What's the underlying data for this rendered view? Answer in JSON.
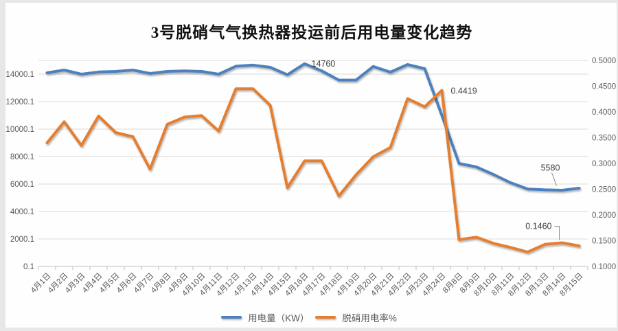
{
  "chart_data": {
    "type": "line",
    "title": "3号脱硝气气换热器投运前后用电量变化趋势",
    "categories": [
      "4月1日",
      "4月2日",
      "4月3日",
      "4月4日",
      "4月5日",
      "4月6日",
      "4月7日",
      "4月8日",
      "4月9日",
      "4月10日",
      "4月11日",
      "4月12日",
      "4月13日",
      "4月14日",
      "4月15日",
      "4月16日",
      "4月17日",
      "4月18日",
      "4月19日",
      "4月20日",
      "4月21日",
      "4月22日",
      "4月23日",
      "4月24日",
      "8月8日",
      "8月9日",
      "8月10日",
      "8月11日",
      "8月12日",
      "8月13日",
      "8月14日",
      "8月15日"
    ],
    "series": [
      {
        "name": "用电量（KW）",
        "yaxis": "left",
        "color": "#4E81BD",
        "values": [
          14100,
          14300,
          14000,
          14160,
          14200,
          14300,
          14050,
          14200,
          14240,
          14200,
          14000,
          14580,
          14660,
          14500,
          13960,
          14760,
          14240,
          13570,
          13570,
          14560,
          14150,
          14700,
          14400,
          11000,
          7500,
          7250,
          6700,
          6100,
          5640,
          5580,
          5550,
          5700
        ]
      },
      {
        "name": "脱硝用电率%",
        "yaxis": "right",
        "color": "#E57E2E",
        "values": [
          0.34,
          0.381,
          0.335,
          0.392,
          0.36,
          0.352,
          0.289,
          0.376,
          0.39,
          0.393,
          0.363,
          0.445,
          0.445,
          0.413,
          0.253,
          0.305,
          0.305,
          0.237,
          0.278,
          0.313,
          0.331,
          0.426,
          0.41,
          0.4419,
          0.152,
          0.157,
          0.145,
          0.137,
          0.128,
          0.143,
          0.146,
          0.14
        ]
      }
    ],
    "left_axis": {
      "tick_labels": [
        "14000.1",
        "12000.1",
        "10000.1",
        "8000.1",
        "6000.1",
        "4000.1",
        "2000.1",
        "0.1"
      ],
      "min": 0.1,
      "max": 15000.1,
      "major_unit": 2000
    },
    "right_axis": {
      "tick_labels": [
        "0.5000",
        "0.4500",
        "0.4000",
        "0.3500",
        "0.3000",
        "0.2500",
        "0.2000",
        "0.1500",
        "0.1000"
      ],
      "min": 0.1,
      "max": 0.5,
      "major_unit": 0.05
    },
    "annotations": [
      {
        "text": "14760",
        "series": 0,
        "index": 15
      },
      {
        "text": "0.4419",
        "series": 1,
        "index": 23
      },
      {
        "text": "5580",
        "series": 0,
        "index": 29
      },
      {
        "text": "0.1460",
        "series": 1,
        "index": 30
      }
    ],
    "legend": {
      "position": "bottom",
      "items": [
        "用电量（KW）",
        "脱硝用电率%"
      ]
    },
    "grid": "horizontal"
  }
}
